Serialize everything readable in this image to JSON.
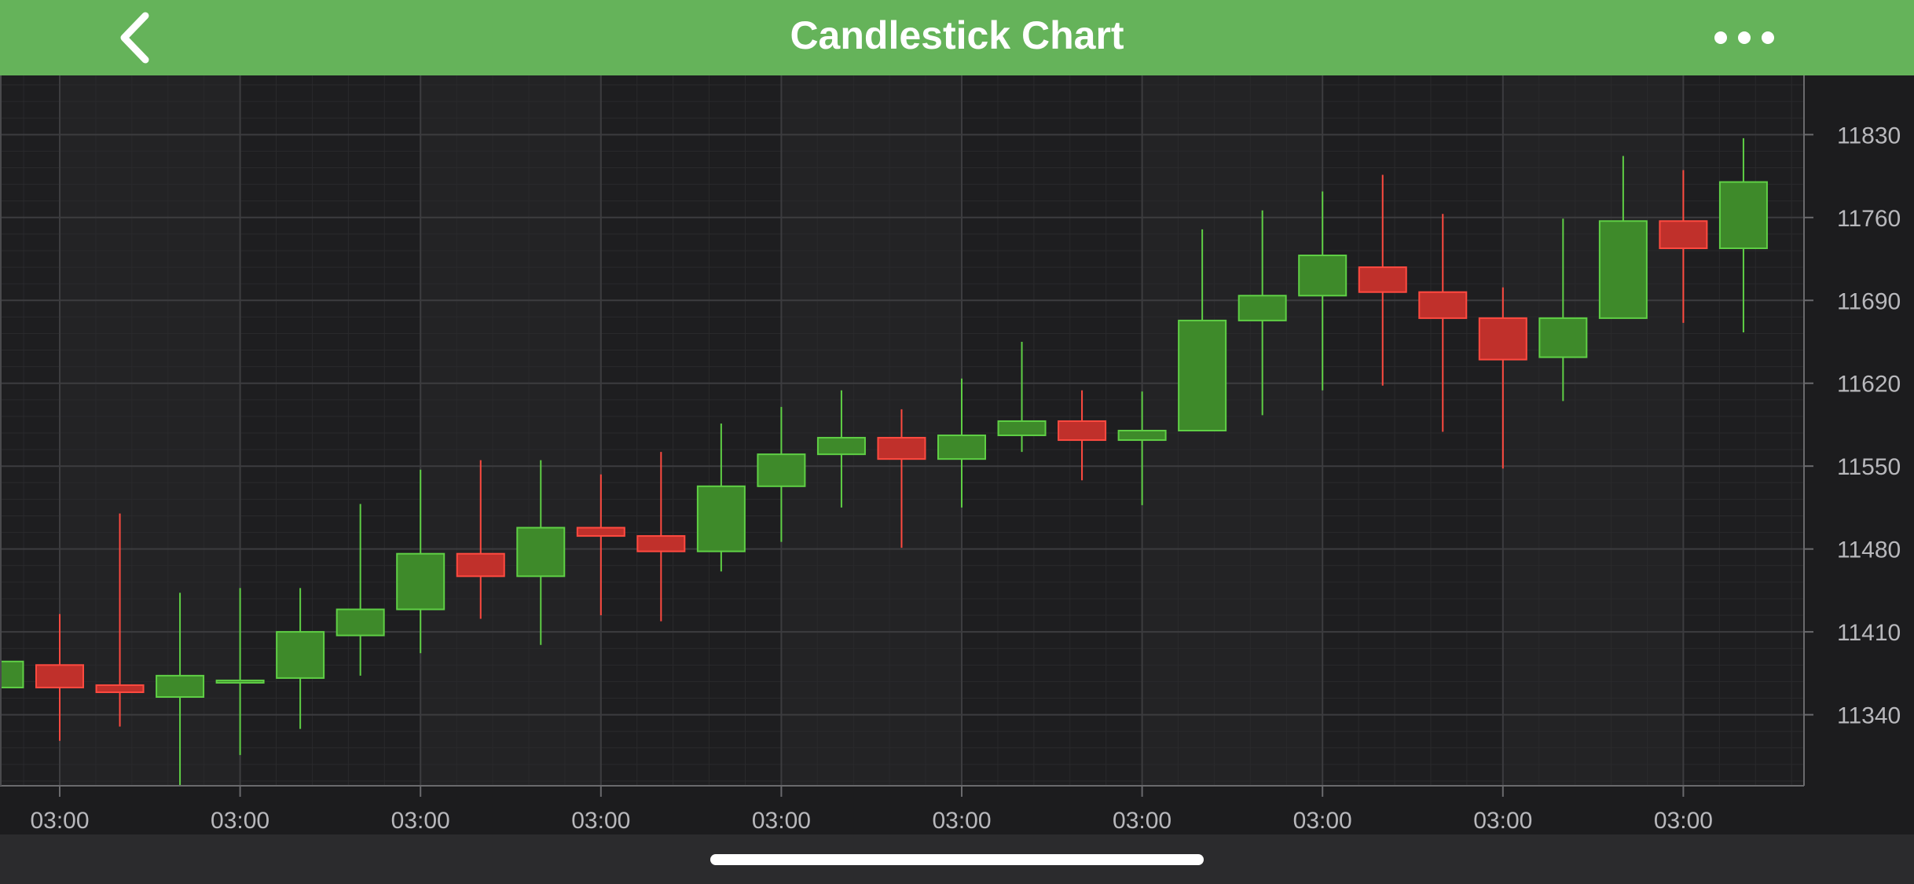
{
  "header": {
    "title": "Candlestick Chart",
    "back_icon": "chevron-left-icon",
    "more_icon": "more-horizontal-icon",
    "bg_color": "#65b35a"
  },
  "chart_data": {
    "type": "candlestick",
    "title": "",
    "xlabel": "",
    "ylabel": "",
    "y_range": [
      11280,
      11880
    ],
    "y_ticks": [
      11340,
      11410,
      11480,
      11550,
      11620,
      11690,
      11760,
      11830
    ],
    "x_tick_labels": [
      "03:00",
      "03:00",
      "03:00",
      "03:00",
      "03:00",
      "03:00",
      "03:00",
      "03:00",
      "03:00",
      "03:00"
    ],
    "grid": true,
    "up_color": "#3e8a2a",
    "down_color": "#c0302b",
    "candles": [
      {
        "open": 11363,
        "high": 11385,
        "low": 11363,
        "close": 11385
      },
      {
        "open": 11382,
        "high": 11425,
        "low": 11318,
        "close": 11363
      },
      {
        "open": 11365,
        "high": 11510,
        "low": 11330,
        "close": 11359
      },
      {
        "open": 11355,
        "high": 11443,
        "low": 11280,
        "close": 11373
      },
      {
        "open": 11369,
        "high": 11447,
        "low": 11306,
        "close": 11369
      },
      {
        "open": 11371,
        "high": 11447,
        "low": 11328,
        "close": 11410
      },
      {
        "open": 11407,
        "high": 11518,
        "low": 11373,
        "close": 11429
      },
      {
        "open": 11429,
        "high": 11547,
        "low": 11392,
        "close": 11476
      },
      {
        "open": 11476,
        "high": 11555,
        "low": 11421,
        "close": 11457
      },
      {
        "open": 11457,
        "high": 11555,
        "low": 11399,
        "close": 11498
      },
      {
        "open": 11498,
        "high": 11543,
        "low": 11424,
        "close": 11491
      },
      {
        "open": 11491,
        "high": 11562,
        "low": 11419,
        "close": 11478
      },
      {
        "open": 11478,
        "high": 11586,
        "low": 11461,
        "close": 11533
      },
      {
        "open": 11533,
        "high": 11600,
        "low": 11486,
        "close": 11560
      },
      {
        "open": 11560,
        "high": 11614,
        "low": 11515,
        "close": 11574
      },
      {
        "open": 11574,
        "high": 11598,
        "low": 11481,
        "close": 11556
      },
      {
        "open": 11556,
        "high": 11624,
        "low": 11515,
        "close": 11576
      },
      {
        "open": 11576,
        "high": 11655,
        "low": 11562,
        "close": 11588
      },
      {
        "open": 11588,
        "high": 11614,
        "low": 11538,
        "close": 11572
      },
      {
        "open": 11572,
        "high": 11613,
        "low": 11517,
        "close": 11580
      },
      {
        "open": 11580,
        "high": 11750,
        "low": 11580,
        "close": 11673
      },
      {
        "open": 11673,
        "high": 11766,
        "low": 11593,
        "close": 11694
      },
      {
        "open": 11694,
        "high": 11782,
        "low": 11614,
        "close": 11728
      },
      {
        "open": 11718,
        "high": 11796,
        "low": 11618,
        "close": 11697
      },
      {
        "open": 11697,
        "high": 11763,
        "low": 11579,
        "close": 11675
      },
      {
        "open": 11675,
        "high": 11701,
        "low": 11548,
        "close": 11640
      },
      {
        "open": 11642,
        "high": 11759,
        "low": 11605,
        "close": 11675
      },
      {
        "open": 11675,
        "high": 11812,
        "low": 11675,
        "close": 11757
      },
      {
        "open": 11757,
        "high": 11800,
        "low": 11671,
        "close": 11734
      },
      {
        "open": 11734,
        "high": 11827,
        "low": 11663,
        "close": 11790
      }
    ]
  }
}
